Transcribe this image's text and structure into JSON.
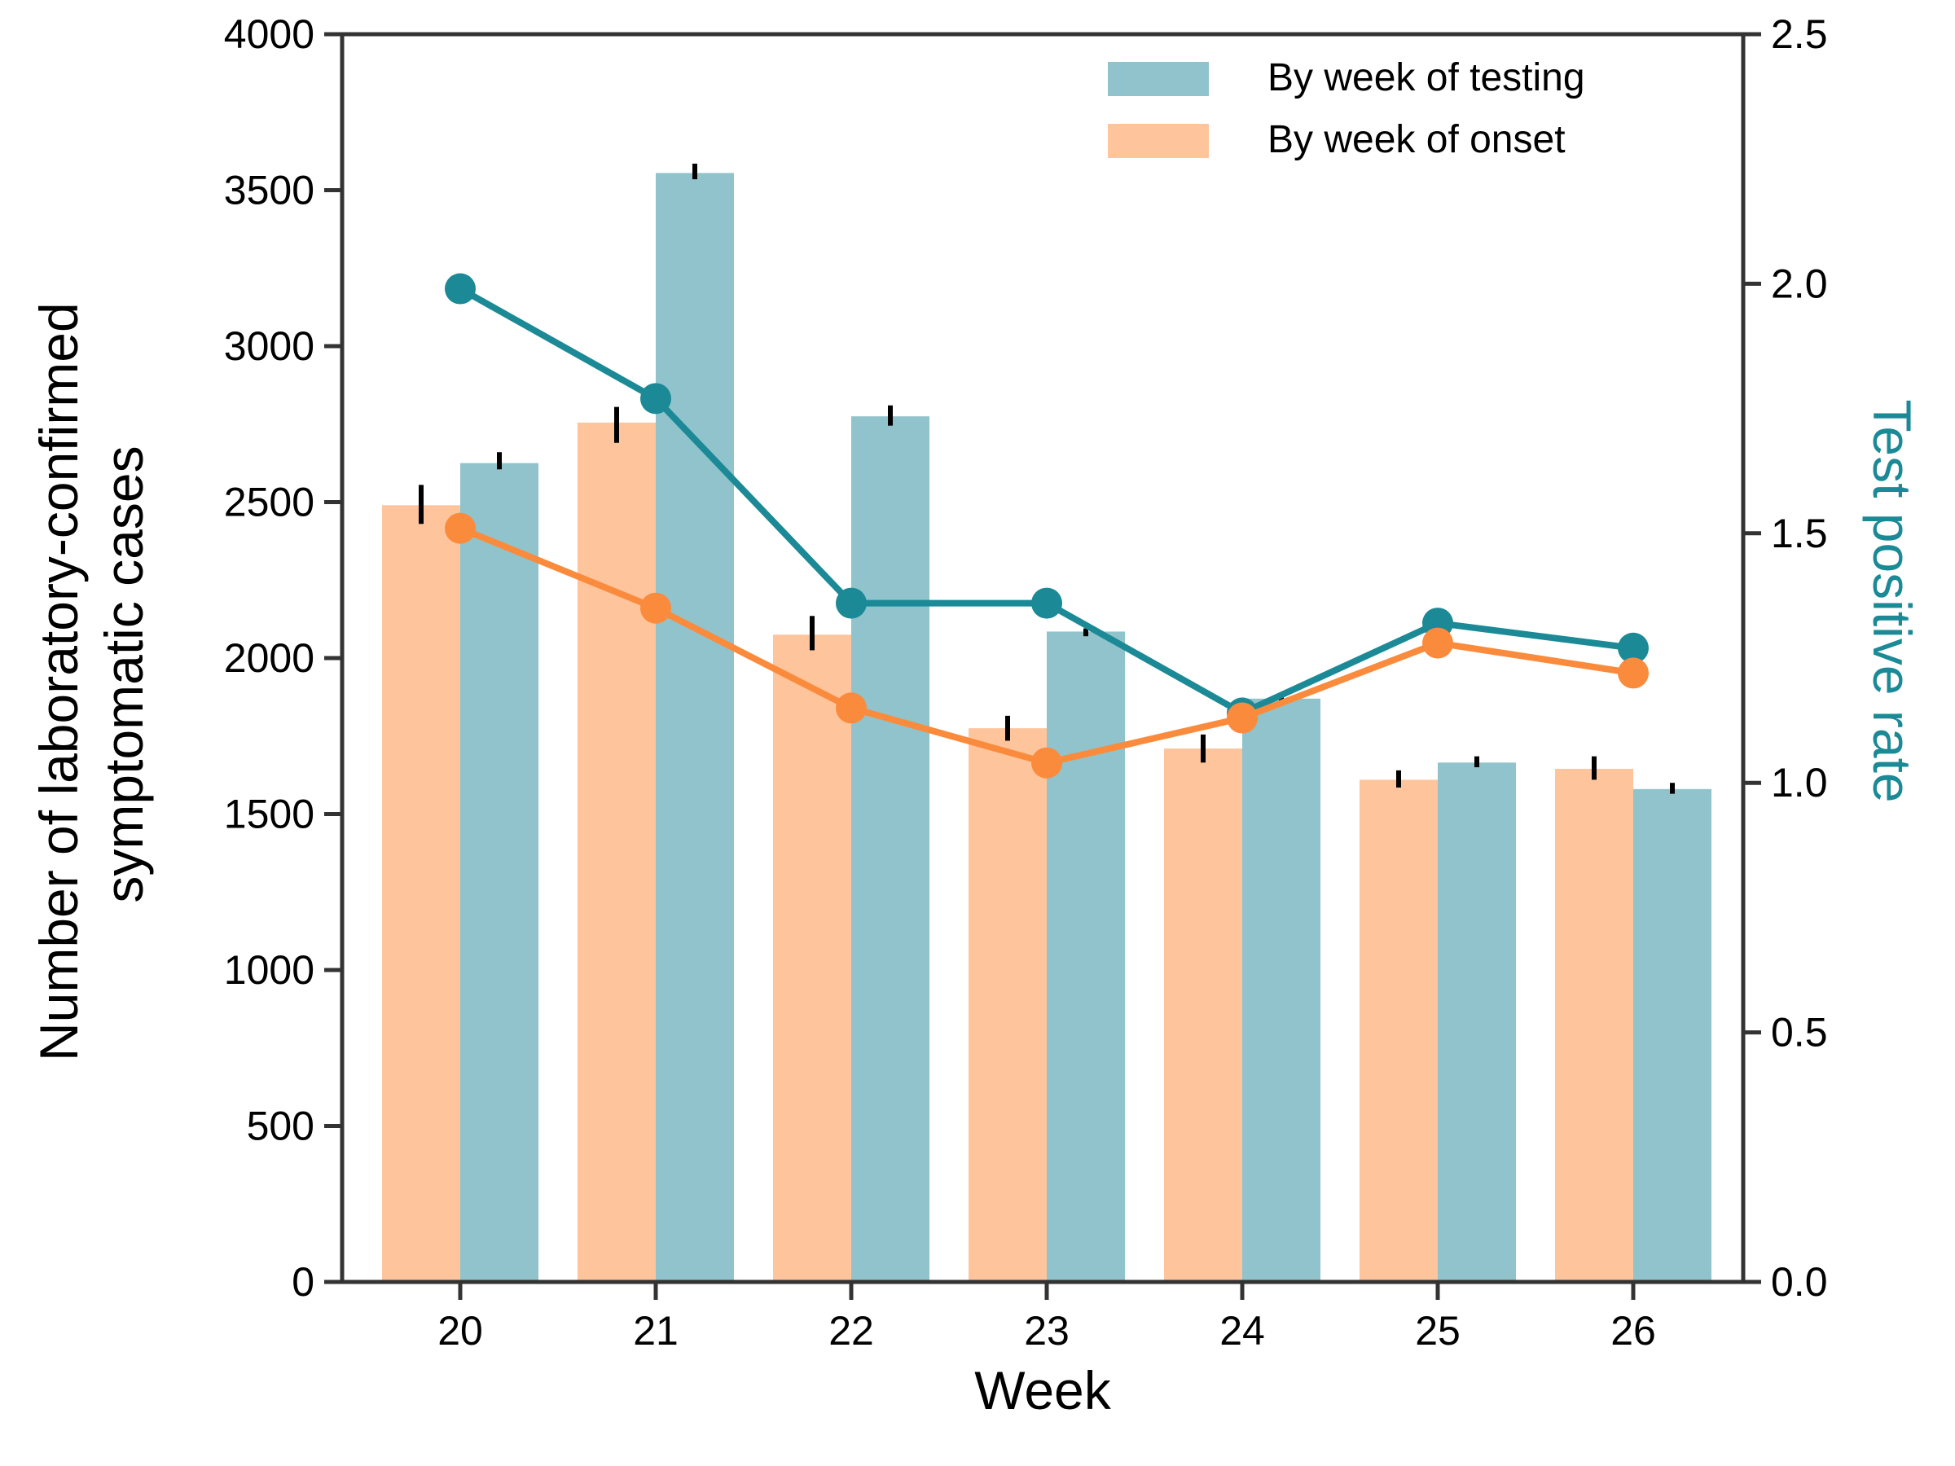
{
  "chart_data": {
    "type": "bar",
    "categories": [
      "20",
      "21",
      "22",
      "23",
      "24",
      "25",
      "26"
    ],
    "xlabel": "Week",
    "ylabel_lines": [
      "Number of laboratory-confirmed",
      "symptomatic cases"
    ],
    "y2label": "Test positive rate",
    "ylim": [
      0,
      4000
    ],
    "y2lim": [
      0,
      2.5
    ],
    "yticks": [
      "0",
      "500",
      "1000",
      "1500",
      "2000",
      "2500",
      "3000",
      "3500",
      "4000"
    ],
    "y2ticks": [
      "0.0",
      "0.5",
      "1.0",
      "1.5",
      "2.0",
      "2.5"
    ],
    "legend_position": "top-right",
    "colors": {
      "onset_bar": "#fec49b",
      "testing_bar": "#90c3cb",
      "onset_line": "#fb8b3c",
      "testing_line": "#1b8a96",
      "errorbar": "#000000",
      "axis": "#333333",
      "y2label": "#1b8a96"
    },
    "series": [
      {
        "name": "By week of onset",
        "axis": "left",
        "values": [
          2490,
          2755,
          2075,
          1775,
          1710,
          1610,
          1645
        ],
        "err_low": [
          2430,
          2690,
          2025,
          1735,
          1665,
          1585,
          1610
        ],
        "err_high": [
          2555,
          2805,
          2135,
          1815,
          1755,
          1640,
          1685
        ]
      },
      {
        "name": "By week of testing",
        "axis": "left",
        "values": [
          2625,
          3555,
          2775,
          2085,
          1870,
          1665,
          1580
        ],
        "err_low": [
          2605,
          3535,
          2745,
          2070,
          1855,
          1650,
          1565
        ],
        "err_high": [
          2660,
          3585,
          2810,
          2095,
          1885,
          1685,
          1600
        ]
      }
    ],
    "line_series": [
      {
        "ref": "By week of testing",
        "axis": "right",
        "values": [
          1.99,
          1.77,
          1.36,
          1.36,
          1.14,
          1.32,
          1.27
        ]
      },
      {
        "ref": "By week of onset",
        "axis": "right",
        "values": [
          1.51,
          1.35,
          1.15,
          1.04,
          1.13,
          1.28,
          1.22
        ]
      }
    ]
  }
}
